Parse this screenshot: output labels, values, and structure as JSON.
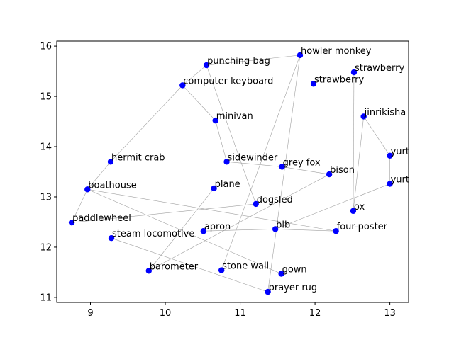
{
  "chart_data": {
    "type": "scatter",
    "title": "",
    "xlabel": "",
    "ylabel": "",
    "xlim": [
      8.55,
      13.25
    ],
    "ylim": [
      10.9,
      16.1
    ],
    "xticks": [
      9,
      10,
      11,
      12,
      13
    ],
    "yticks": [
      11,
      12,
      13,
      14,
      15,
      16
    ],
    "grid": false,
    "marker_color": "#0000ff",
    "edge_color": "#a0a0a0",
    "points": [
      {
        "label": "punching bag",
        "x": 10.55,
        "y": 15.62
      },
      {
        "label": "howler monkey",
        "x": 11.8,
        "y": 15.82
      },
      {
        "label": "strawberry",
        "x": 12.52,
        "y": 15.48
      },
      {
        "label": "strawberry",
        "x": 11.98,
        "y": 15.25
      },
      {
        "label": "computer keyboard",
        "x": 10.23,
        "y": 15.22
      },
      {
        "label": "jinrikisha",
        "x": 12.65,
        "y": 14.6
      },
      {
        "label": "minivan",
        "x": 10.67,
        "y": 14.52
      },
      {
        "label": "yurt",
        "x": 13.0,
        "y": 13.82
      },
      {
        "label": "hermit crab",
        "x": 9.27,
        "y": 13.7
      },
      {
        "label": "sidewinder",
        "x": 10.82,
        "y": 13.7
      },
      {
        "label": "grey fox",
        "x": 11.56,
        "y": 13.6
      },
      {
        "label": "bison",
        "x": 12.19,
        "y": 13.45
      },
      {
        "label": "yurt",
        "x": 13.0,
        "y": 13.26
      },
      {
        "label": "plane",
        "x": 10.65,
        "y": 13.17
      },
      {
        "label": "boathouse",
        "x": 8.96,
        "y": 13.15
      },
      {
        "label": "dogsled",
        "x": 11.21,
        "y": 12.86
      },
      {
        "label": "ox",
        "x": 12.51,
        "y": 12.72
      },
      {
        "label": "paddlewheel",
        "x": 8.75,
        "y": 12.49
      },
      {
        "label": "bib",
        "x": 11.47,
        "y": 12.36
      },
      {
        "label": "four-poster",
        "x": 12.28,
        "y": 12.32
      },
      {
        "label": "apron",
        "x": 10.51,
        "y": 12.32
      },
      {
        "label": "steam locomotive",
        "x": 9.28,
        "y": 12.18
      },
      {
        "label": "barometer",
        "x": 9.78,
        "y": 11.53
      },
      {
        "label": "stone wall",
        "x": 10.75,
        "y": 11.54
      },
      {
        "label": "gown",
        "x": 11.55,
        "y": 11.47
      },
      {
        "label": "prayer rug",
        "x": 11.37,
        "y": 11.11
      }
    ],
    "edges": [
      [
        "computer keyboard",
        "punching bag"
      ],
      [
        "punching bag",
        "howler monkey"
      ],
      [
        "computer keyboard",
        "minivan"
      ],
      [
        "computer keyboard",
        "hermit crab"
      ],
      [
        "hermit crab",
        "boathouse"
      ],
      [
        "punching bag",
        "dogsled"
      ],
      [
        "minivan",
        "sidewinder"
      ],
      [
        "sidewinder",
        "grey fox"
      ],
      [
        "grey fox",
        "bison"
      ],
      [
        "howler monkey",
        "prayer rug"
      ],
      [
        "strawberry@1",
        "stone wall"
      ],
      [
        "strawberry@2",
        "ox"
      ],
      [
        "jinrikisha",
        "ox"
      ],
      [
        "jinrikisha",
        "yurt@7"
      ],
      [
        "yurt@7",
        "yurt@12"
      ],
      [
        "yurt@12",
        "bib"
      ],
      [
        "boathouse",
        "paddlewheel"
      ],
      [
        "boathouse",
        "four-poster"
      ],
      [
        "boathouse",
        "gown"
      ],
      [
        "paddlewheel",
        "dogsled"
      ],
      [
        "steam locomotive",
        "prayer rug"
      ],
      [
        "barometer",
        "plane"
      ],
      [
        "barometer",
        "bison"
      ],
      [
        "apron",
        "bib"
      ],
      [
        "bib",
        "four-poster"
      ]
    ]
  }
}
